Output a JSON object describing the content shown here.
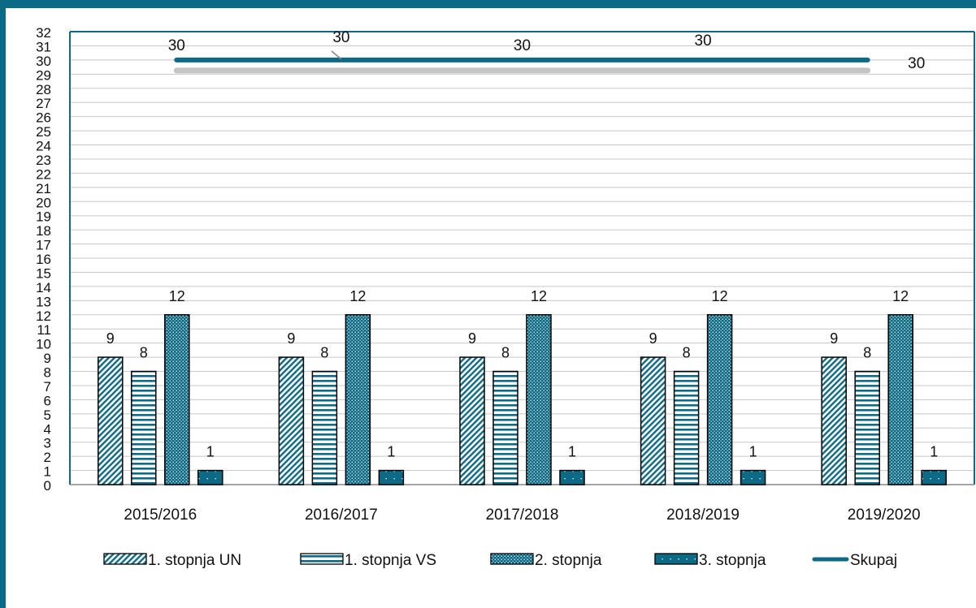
{
  "colors": {
    "frame": "#0d6a86",
    "accent": "#0d6a86",
    "grid": "#c8c8c8",
    "bar_outline": "#000000",
    "line_shadow": "#c4c4c4"
  },
  "chart_data": {
    "type": "bar",
    "title": "",
    "xlabel": "",
    "ylabel": "",
    "ylim": [
      0,
      32
    ],
    "y_ticks": [
      "0",
      "1",
      "2",
      "3",
      "4",
      "5",
      "6",
      "7",
      "8",
      "9",
      "10",
      "11",
      "12",
      "13",
      "14",
      "15",
      "16",
      "17",
      "18",
      "19",
      "20",
      "21",
      "22",
      "23",
      "24",
      "25",
      "26",
      "27",
      "28",
      "29",
      "30",
      "31",
      "32"
    ],
    "grid": true,
    "legend_position": "bottom",
    "categories": [
      "2015/2016",
      "2016/2017",
      "2017/2018",
      "2018/2019",
      "2019/2020"
    ],
    "series": [
      {
        "name": "1. stopnja UN",
        "kind": "bar",
        "pattern": "diagonal",
        "values": [
          9,
          9,
          9,
          9,
          9
        ],
        "labels": [
          "9",
          "9",
          "9",
          "9",
          "9"
        ]
      },
      {
        "name": "1. stopnja VS",
        "kind": "bar",
        "pattern": "horizontal",
        "values": [
          8,
          8,
          8,
          8,
          8
        ],
        "labels": [
          "8",
          "8",
          "8",
          "8",
          "8"
        ]
      },
      {
        "name": "2. stopnja",
        "kind": "bar",
        "pattern": "dots",
        "values": [
          12,
          12,
          12,
          12,
          12
        ],
        "labels": [
          "12",
          "12",
          "12",
          "12",
          "12"
        ]
      },
      {
        "name": "3. stopnja",
        "kind": "bar",
        "pattern": "solid-dots",
        "values": [
          1,
          1,
          1,
          1,
          1
        ],
        "labels": [
          "1",
          "1",
          "1",
          "1",
          "1"
        ]
      },
      {
        "name": "Skupaj",
        "kind": "line",
        "values": [
          30,
          30,
          30,
          30,
          30
        ],
        "labels": [
          "30",
          "30",
          "30",
          "30",
          "30"
        ]
      }
    ]
  }
}
